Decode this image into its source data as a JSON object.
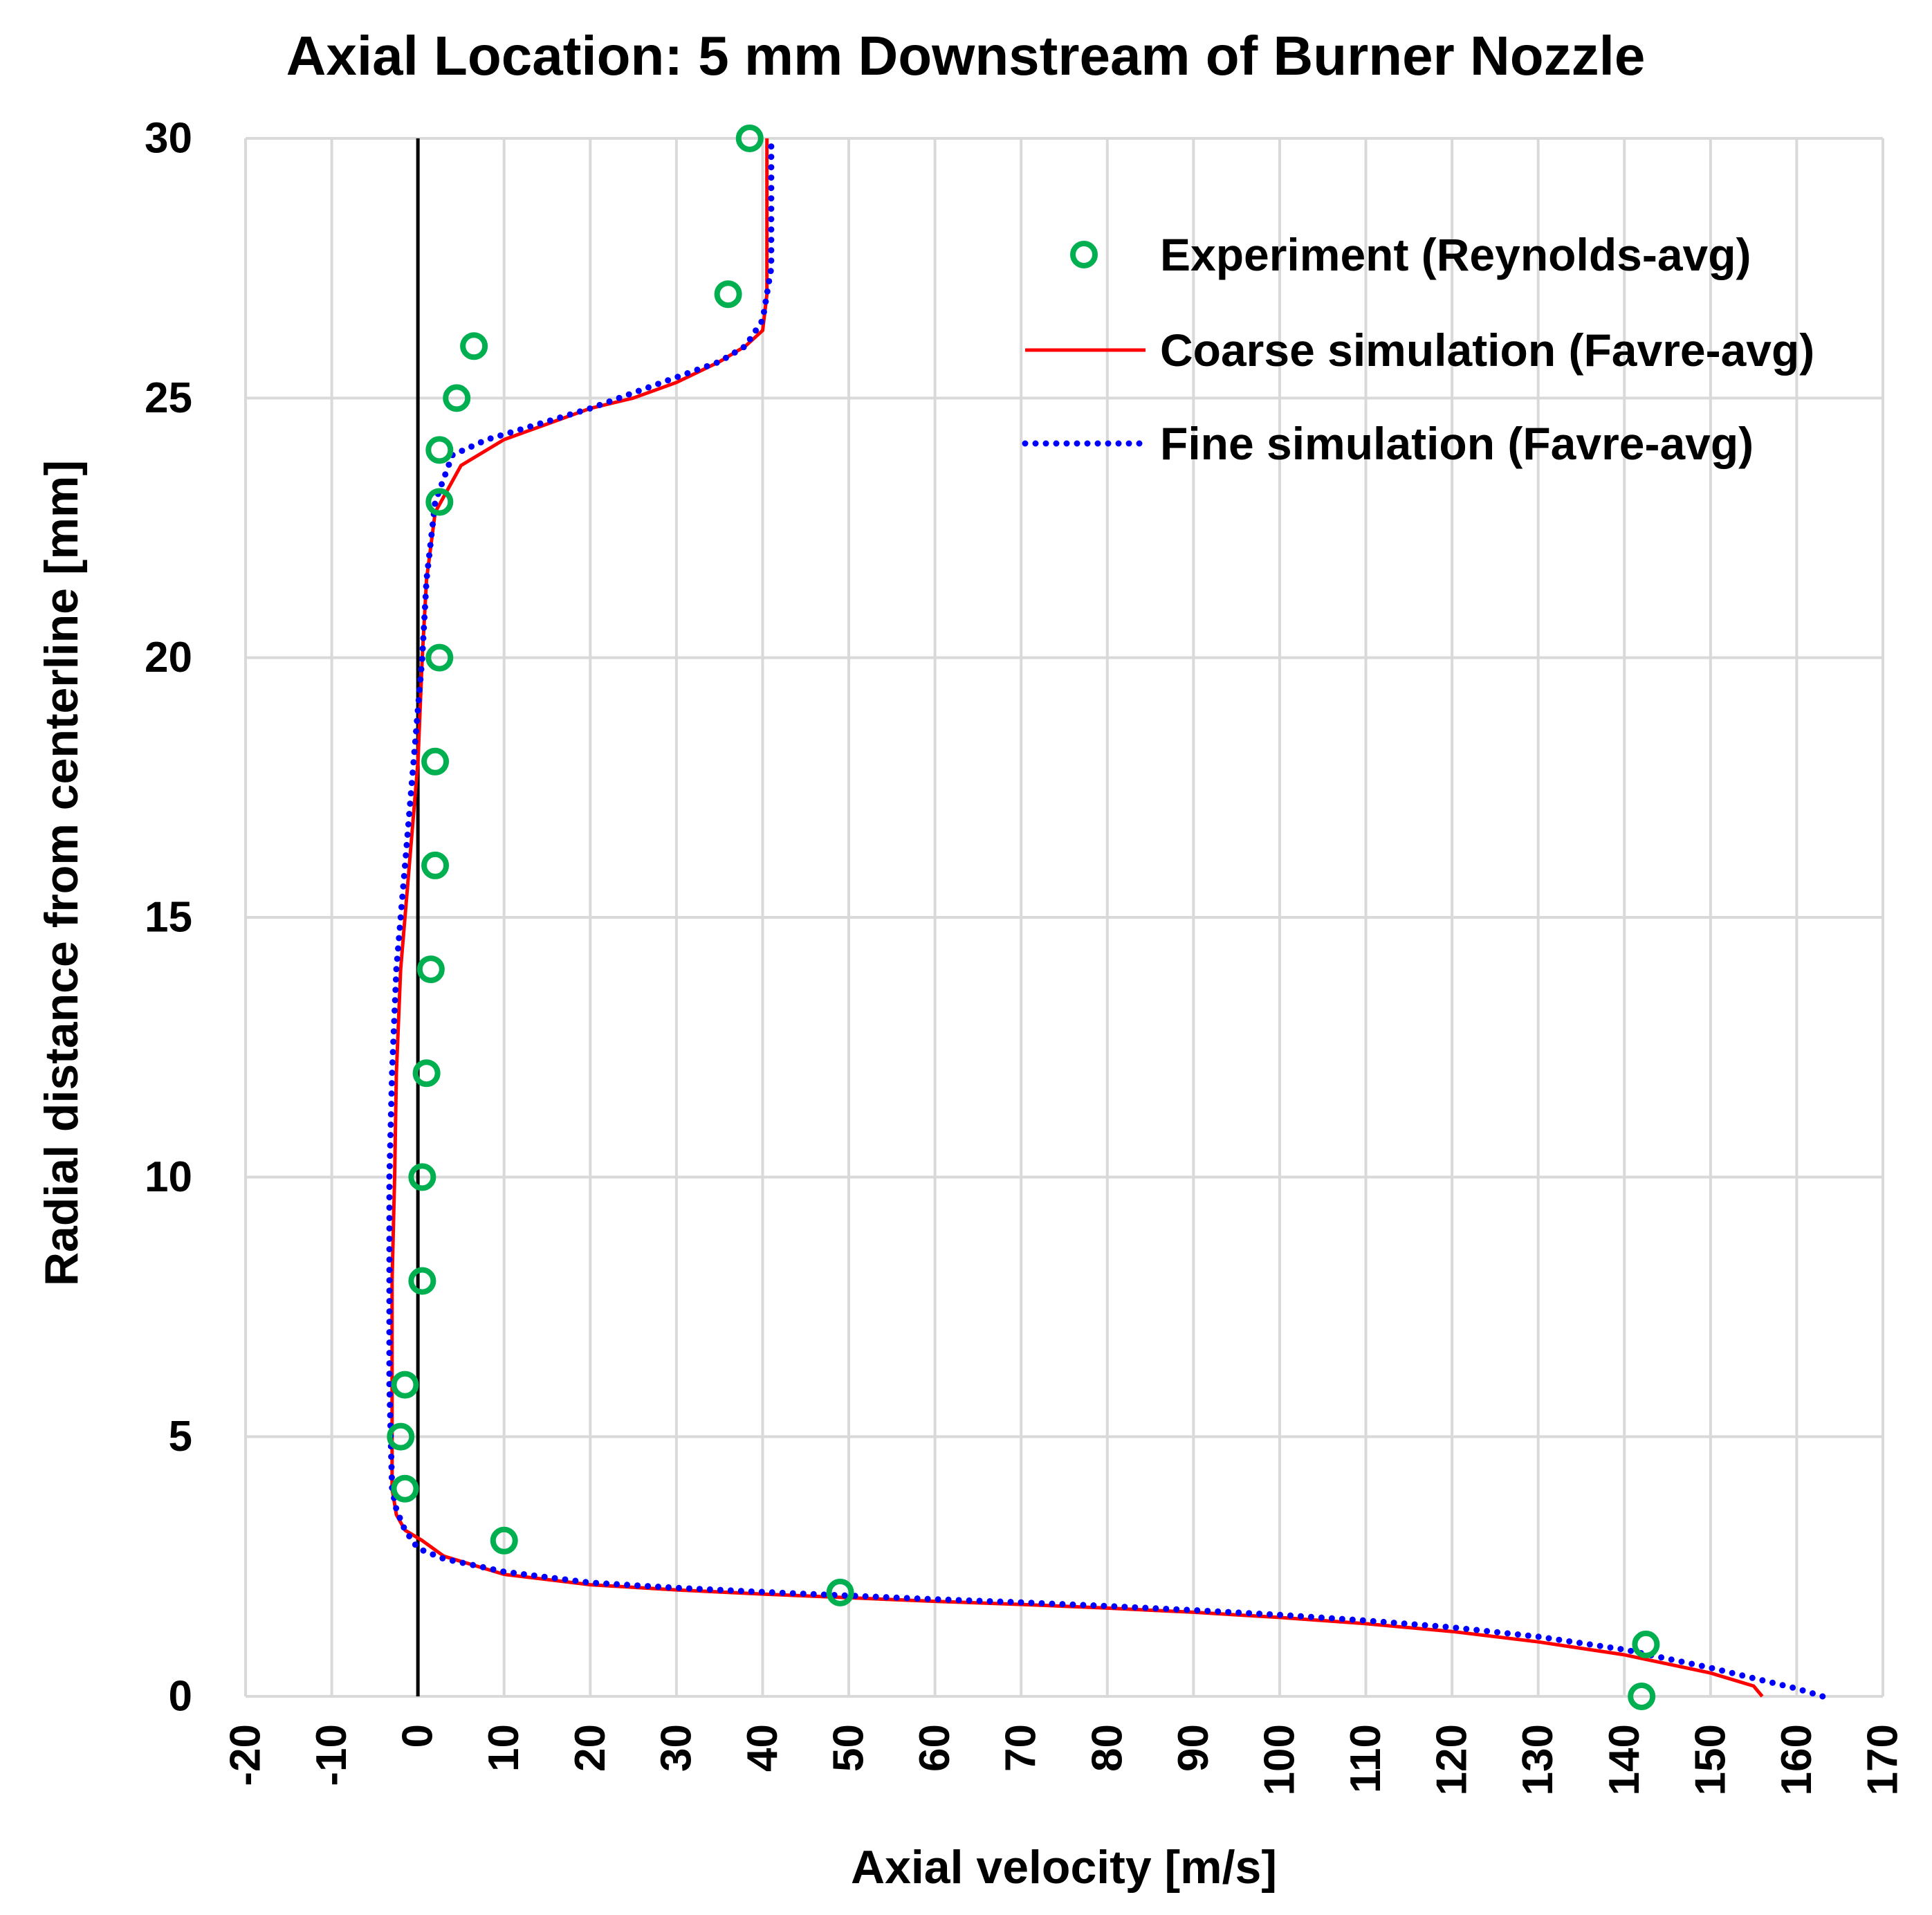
{
  "chart_data": {
    "type": "scatter",
    "title": "Axial Location: 5 mm Downstream of Burner Nozzle",
    "xlabel": "Axial velocity [m/s]",
    "ylabel": "Radial distance from centerline [mm]",
    "xlim": [
      -20,
      170
    ],
    "ylim": [
      0,
      30
    ],
    "x_ticks": [
      -20,
      -10,
      0,
      10,
      20,
      30,
      40,
      50,
      60,
      70,
      80,
      90,
      100,
      110,
      120,
      130,
      140,
      150,
      160,
      170
    ],
    "y_ticks": [
      0,
      5,
      10,
      15,
      20,
      25,
      30
    ],
    "grid": true,
    "zero_line": true,
    "legend_position": "top-right",
    "series": [
      {
        "name": "Experiment (Reynolds-avg)",
        "style": "markers",
        "color": "#00b050",
        "x": [
          142,
          142.5,
          49,
          10,
          -1.5,
          -2,
          -1.5,
          0.5,
          0.5,
          1,
          1.5,
          2,
          2,
          2.5,
          2.5,
          2.5,
          4.5,
          6.5,
          36,
          38.5
        ],
        "y": [
          0,
          1,
          2,
          3,
          4,
          5,
          6,
          8,
          10,
          12,
          14,
          16,
          18,
          20,
          23,
          24,
          25,
          26,
          27,
          30
        ]
      },
      {
        "name": "Coarse simulation (Favre-avg)",
        "style": "solid",
        "color": "#ff0000",
        "x": [
          156,
          155,
          150,
          140,
          130,
          120,
          110,
          100,
          90,
          80,
          70,
          60,
          50,
          40,
          30,
          20,
          10,
          3,
          0.5,
          -1.5,
          -2.5,
          -3,
          -3,
          -3,
          -2.7,
          -2.5,
          -2,
          -1,
          0,
          0.5,
          1,
          2,
          5,
          10,
          15,
          20,
          25,
          30,
          35,
          38,
          40,
          40.5,
          40.5,
          40.5
        ],
        "y": [
          0,
          0.2,
          0.45,
          0.8,
          1.05,
          1.25,
          1.4,
          1.52,
          1.62,
          1.7,
          1.77,
          1.83,
          1.9,
          1.97,
          2.05,
          2.15,
          2.35,
          2.7,
          3.0,
          3.2,
          3.5,
          4.0,
          6.0,
          8.0,
          10,
          12,
          14,
          16,
          18,
          20,
          21.5,
          22.8,
          23.7,
          24.2,
          24.5,
          24.8,
          25.0,
          25.3,
          25.7,
          26.0,
          26.3,
          27.0,
          28.5,
          30
        ]
      },
      {
        "name": "Fine simulation (Favre-avg)",
        "style": "dotted",
        "color": "#0000ff",
        "x": [
          163,
          160,
          150,
          140,
          130,
          120,
          110,
          100,
          90,
          80,
          70,
          60,
          50,
          40,
          30,
          20,
          10,
          3,
          0,
          -1.5,
          -2.5,
          -3,
          -3.3,
          -3.3,
          -3.3,
          -3,
          -2.5,
          -1.5,
          -0.5,
          0.5,
          1,
          2,
          4,
          8,
          12,
          16,
          20,
          25,
          30,
          35,
          38,
          40,
          41,
          41,
          41
        ],
        "y": [
          0,
          0.15,
          0.55,
          0.9,
          1.15,
          1.33,
          1.46,
          1.57,
          1.66,
          1.74,
          1.81,
          1.87,
          1.94,
          2.01,
          2.09,
          2.19,
          2.4,
          2.65,
          2.85,
          3.2,
          3.6,
          4.0,
          6.0,
          8.0,
          10,
          12,
          14,
          16,
          18,
          20,
          21.5,
          23.0,
          23.9,
          24.2,
          24.4,
          24.6,
          24.8,
          25.1,
          25.4,
          25.7,
          26.0,
          26.5,
          27.5,
          29,
          30
        ]
      }
    ]
  }
}
